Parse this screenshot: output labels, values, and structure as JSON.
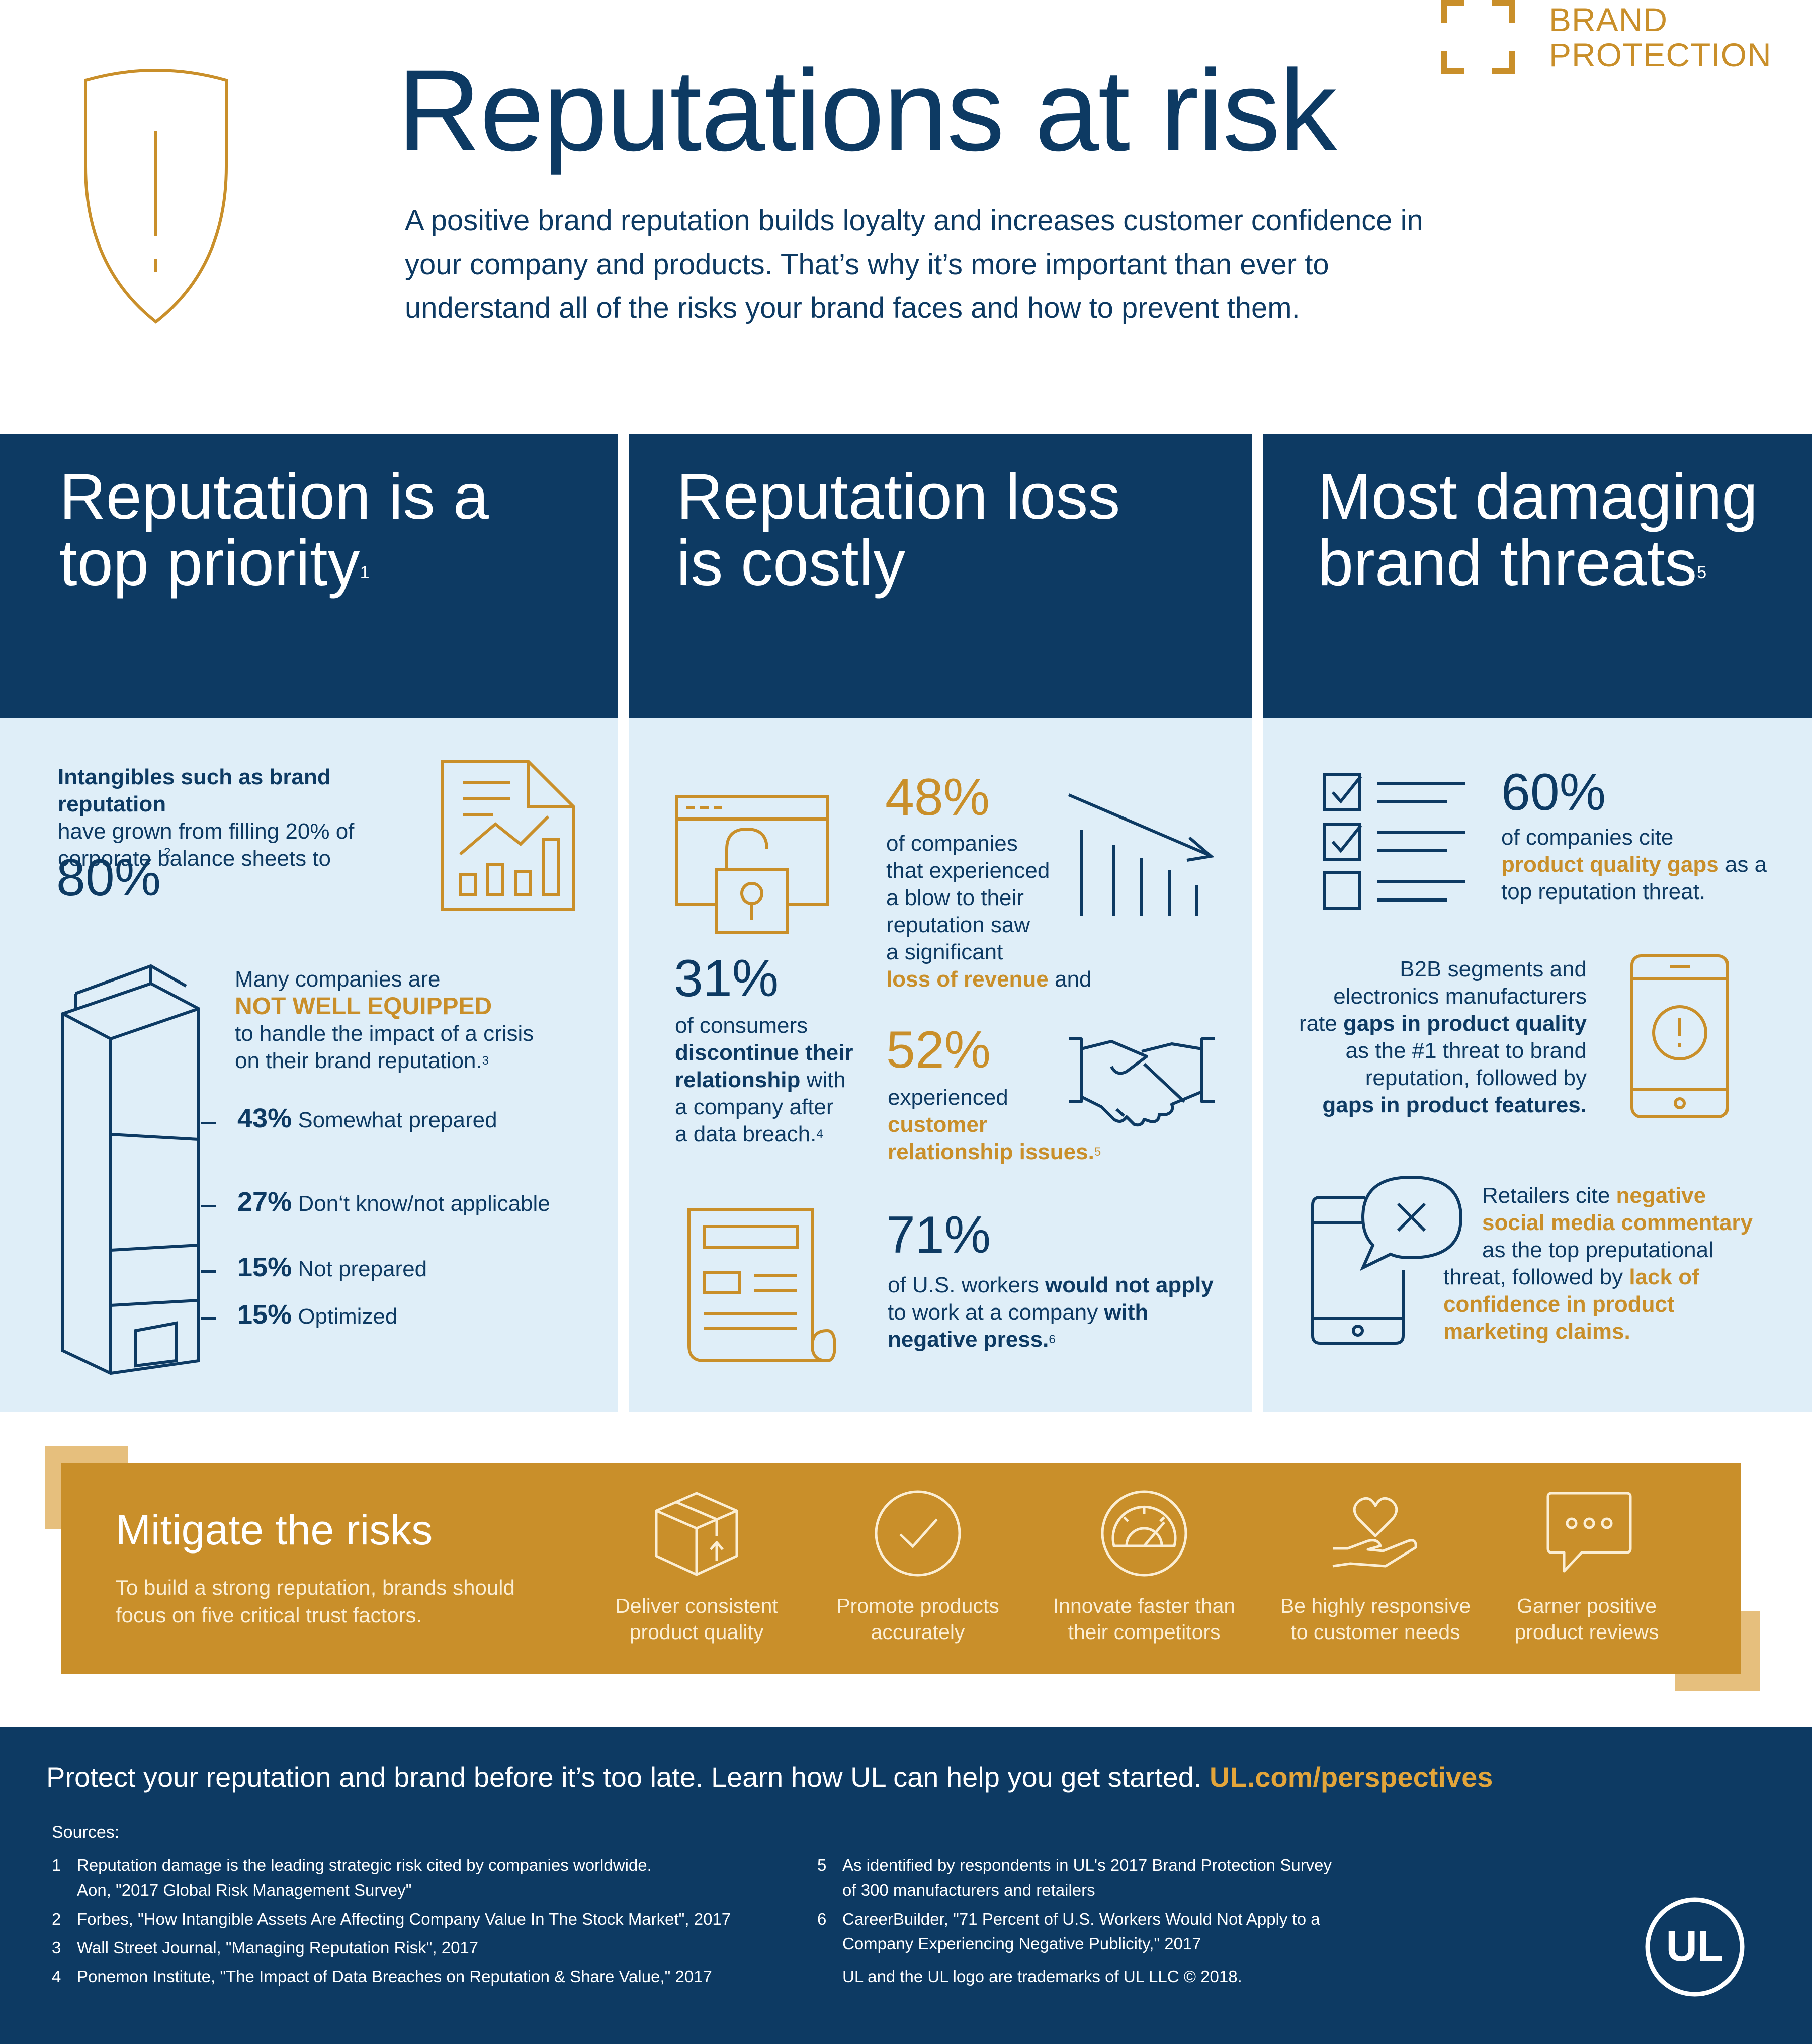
{
  "brand": {
    "line1": "BRAND",
    "line2": "PROTECTION"
  },
  "header": {
    "title": "Reputations at risk",
    "intro": "A positive brand reputation builds loyalty and increases customer confidence in your company and products. That’s why it’s more important than ever to understand all of the risks your brand faces and how to prevent them."
  },
  "col1": {
    "title_line1": "Reputation is a",
    "title_line2": "top priority",
    "title_sup": "1",
    "intangibles_bold": "Intangibles such as brand reputation",
    "intangibles_rest1": "have grown from filling 20% of",
    "intangibles_rest2": "corporate balance sheets to",
    "big_value": "80%",
    "big_sup": "2",
    "many_1": "Many companies are",
    "many_highlight": "NOT WELL EQUIPPED",
    "many_2": "to handle the impact of a crisis",
    "many_3": "on their brand reputation.",
    "many_sup": "3",
    "stats": [
      {
        "value": "43%",
        "label": "Somewhat prepared"
      },
      {
        "value": "27%",
        "label": "Don‘t know/not applicable"
      },
      {
        "value": "15%",
        "label": "Not prepared"
      },
      {
        "value": "15%",
        "label": "Optimized"
      }
    ]
  },
  "col2": {
    "title_line1": "Reputation loss",
    "title_line2": "is costly",
    "stat48_value": "48%",
    "stat48_l1": "of companies",
    "stat48_l2": "that experienced",
    "stat48_l3": "a blow to their",
    "stat48_l4": "reputation saw",
    "stat48_l5": "a significant",
    "stat48_hl": "loss of revenue",
    "stat48_end": " and",
    "stat31_value": "31%",
    "stat31_l1": "of consumers",
    "stat31_b1": "discontinue their",
    "stat31_b2": "relationship",
    "stat31_l2": " with",
    "stat31_l3": "a company after",
    "stat31_l4": "a data breach.",
    "stat31_sup": "4",
    "stat52_value": "52%",
    "stat52_l1": "experienced",
    "stat52_hl1": "customer",
    "stat52_hl2": "relationship issues.",
    "stat52_sup": "5",
    "stat71_value": "71%",
    "stat71_l1": "of U.S. workers ",
    "stat71_b1": "would not apply",
    "stat71_l2": "to work at a company ",
    "stat71_b2": "with",
    "stat71_b3": "negative press.",
    "stat71_sup": "6"
  },
  "col3": {
    "title_line1": "Most damaging",
    "title_line2": "brand threats",
    "title_sup": "5",
    "stat60_value": "60%",
    "stat60_l1": "of companies cite",
    "stat60_hl": "product quality gaps",
    "stat60_l2": " as a",
    "stat60_l3": "top reputation threat.",
    "b2b_l1": "B2B segments and",
    "b2b_l2": "electronics manufacturers",
    "b2b_l3a": "rate ",
    "b2b_l3b": "gaps in product quality",
    "b2b_l4": "as the #1 threat to brand",
    "b2b_l5": "reputation, followed by",
    "b2b_l6": "gaps in product features.",
    "ret_l1a": "Retailers cite ",
    "ret_l1b": "negative",
    "ret_l2": "social media commentary",
    "ret_l3": "as the top preputational",
    "ret_l4a": "threat, followed by ",
    "ret_l4b": "lack of",
    "ret_l5": "confidence in product",
    "ret_l6": "marketing claims."
  },
  "mitigate": {
    "title": "Mitigate the risks",
    "subtitle": "To build a strong reputation, brands should focus on five critical trust factors.",
    "factors": [
      {
        "l1": "Deliver consistent",
        "l2": "product quality",
        "icon": "box-icon"
      },
      {
        "l1": "Promote products",
        "l2": "accurately",
        "icon": "checkmark-icon"
      },
      {
        "l1": "Innovate faster than",
        "l2": "their competitors",
        "icon": "speedometer-icon"
      },
      {
        "l1": "Be highly responsive",
        "l2": "to customer needs",
        "icon": "heart-hand-icon"
      },
      {
        "l1": "Garner positive",
        "l2": "product reviews",
        "icon": "chat-bubble-icon"
      }
    ]
  },
  "footer": {
    "cta": "Protect your reputation and brand before it’s too late. Learn how UL can help you get started. ",
    "link": "UL.com/perspectives",
    "sources_label": "Sources:",
    "sources": [
      {
        "n": "1",
        "l1": "Reputation damage is the leading strategic risk cited by companies worldwide.",
        "l2": "Aon, \"2017 Global Risk Management Survey\""
      },
      {
        "n": "2",
        "l1": "Forbes, \"How Intangible Assets Are Affecting Company Value In The Stock Market\", 2017",
        "l2": ""
      },
      {
        "n": "3",
        "l1": "Wall Street Journal, \"Managing Reputation Risk\", 2017",
        "l2": ""
      },
      {
        "n": "4",
        "l1": "Ponemon Institute, \"The Impact of Data Breaches on Reputation & Share Value,\" 2017",
        "l2": ""
      },
      {
        "n": "5",
        "l1": "As identified by respondents in UL's 2017 Brand Protection Survey",
        "l2": "of 300 manufacturers and retailers"
      },
      {
        "n": "6",
        "l1": "CareerBuilder, \"71 Percent of U.S. Workers Would Not Apply to a",
        "l2": "Company Experiencing Negative Publicity,\" 2017"
      }
    ],
    "trademark": "UL and the UL logo are trademarks of UL LLC © 2018.",
    "logo_text": "UL"
  },
  "colors": {
    "navy": "#0d3a63",
    "gold": "#c98f2a",
    "light_blue": "#dfeef8"
  }
}
